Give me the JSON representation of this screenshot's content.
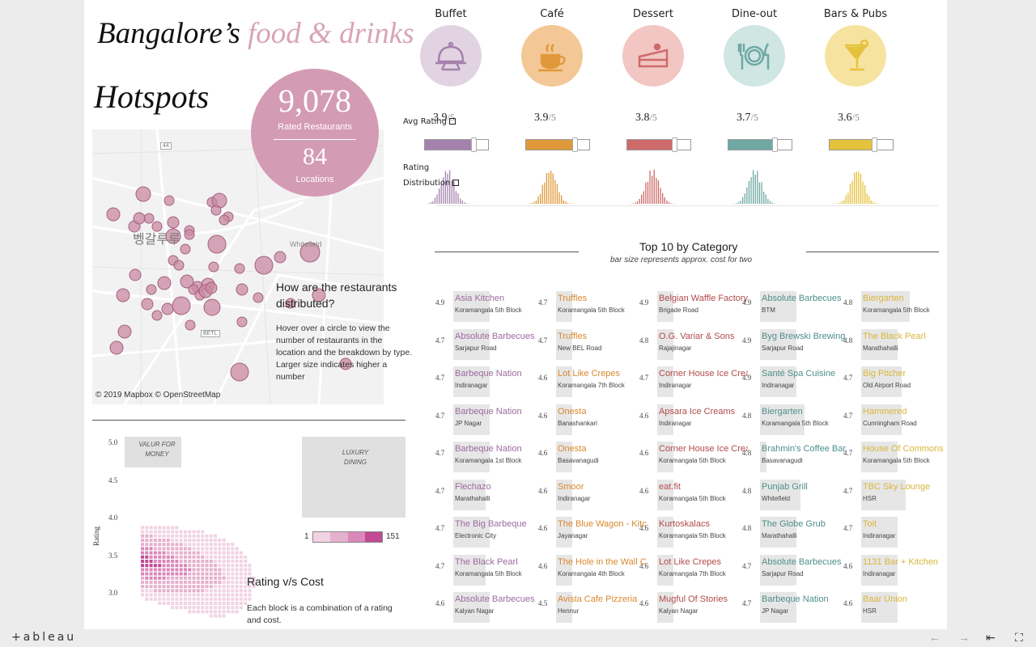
{
  "title": {
    "part1": "Bangalore’s",
    "part2": "food & drinks",
    "part3": "Hotspots"
  },
  "summary": {
    "restaurants": "9,078",
    "restaurants_label": "Rated Restaurants",
    "locations": "84",
    "locations_label": "Locations"
  },
  "map": {
    "question": "How are the restaurants distributed?",
    "description": "Hover over a circle to view the number of restaurants in the location and the breakdown by type. Larger size indicates higher a number",
    "credit": "© 2019 Mapbox  © OpenStreetMap",
    "labels": {
      "city": "벵갈루루",
      "whitefield": "Whitefield",
      "road44": "44",
      "betl": "BETL"
    }
  },
  "categories": [
    {
      "name": "Buffet",
      "avg": "3.9",
      "den": "/5",
      "rating": 3.9,
      "color": "#a582ad",
      "bg": "#e2d3e3",
      "icon": "cloche-icon"
    },
    {
      "name": "Café",
      "avg": "3.9",
      "den": "/5",
      "rating": 3.9,
      "color": "#e0993a",
      "bg": "#f3c896",
      "icon": "coffee-cup-icon"
    },
    {
      "name": "Dessert",
      "avg": "3.8",
      "den": "/5",
      "rating": 3.8,
      "color": "#cf6a6a",
      "bg": "#f2c6c2",
      "icon": "cake-slice-icon"
    },
    {
      "name": "Dine-out",
      "avg": "3.7",
      "den": "/5",
      "rating": 3.7,
      "color": "#6fa9a4",
      "bg": "#cfe6e3",
      "icon": "plate-cutlery-icon"
    },
    {
      "name": "Bars & Pubs",
      "avg": "3.6",
      "den": "/5",
      "rating": 3.6,
      "color": "#e5c23b",
      "bg": "#f7e3a0",
      "icon": "cocktail-icon"
    }
  ],
  "labels": {
    "avg_rating": "Avg Rating",
    "rating": "Rating",
    "distribution": "Distribution"
  },
  "top10": {
    "title": "Top 10 by Category",
    "subtitle": "bar size represents approx. cost for two",
    "columns": [
      {
        "color": "#9b6a9e",
        "rows": [
          {
            "r": "4.9",
            "n": "Asia Kitchen",
            "l": "Koramangala 5th Block",
            "w": 0.45
          },
          {
            "r": "4.7",
            "n": "Absolute Barbecues",
            "l": "Sarjapur Road",
            "w": 0.45
          },
          {
            "r": "4.7",
            "n": "Barbeque Nation",
            "l": "Indiranagar",
            "w": 0.45
          },
          {
            "r": "4.7",
            "n": "Barbeque Nation",
            "l": "JP Nagar",
            "w": 0.45
          },
          {
            "r": "4.7",
            "n": "Barbeque Nation",
            "l": "Koramangala 1st Block",
            "w": 0.45
          },
          {
            "r": "4.7",
            "n": "Flechazo",
            "l": "Marathahalli",
            "w": 0.4
          },
          {
            "r": "4.7",
            "n": "The Big Barbeque",
            "l": "Electronic City",
            "w": 0.45
          },
          {
            "r": "4.7",
            "n": "The Black Pearl",
            "l": "Koramangala 5th Block",
            "w": 0.4
          },
          {
            "r": "4.6",
            "n": "Absolute Barbecues",
            "l": "Kalyan Nagar",
            "w": 0.45
          }
        ]
      },
      {
        "color": "#d9892e",
        "rows": [
          {
            "r": "4.7",
            "n": "Truffles",
            "l": "Koramangala 5th Block",
            "w": 0.2
          },
          {
            "r": "4.7",
            "n": "Truffles",
            "l": "New BEL Road",
            "w": 0.2
          },
          {
            "r": "4.6",
            "n": "Lot Like Crepes",
            "l": "Koramangala 7th Block",
            "w": 0.2
          },
          {
            "r": "4.6",
            "n": "Onesta",
            "l": "Banashankari",
            "w": 0.2
          },
          {
            "r": "4.6",
            "n": "Onesta",
            "l": "Basavanagudi",
            "w": 0.2
          },
          {
            "r": "4.6",
            "n": "Smoor",
            "l": "Indiranagar",
            "w": 0.2
          },
          {
            "r": "4.6",
            "n": "The Blue Wagon - Kitchen",
            "l": "Jayanagar",
            "w": 0.2
          },
          {
            "r": "4.6",
            "n": "The Hole in the Wall Cafe",
            "l": "Koramangala 4th Block",
            "w": 0.2
          },
          {
            "r": "4.5",
            "n": "Avista Cafe Pizzeria",
            "l": "Hennur",
            "w": 0.2
          }
        ]
      },
      {
        "color": "#b24a4a",
        "rows": [
          {
            "r": "4.9",
            "n": "Belgian Waffle Factory",
            "l": "Brigade Road",
            "w": 0.2
          },
          {
            "r": "4.8",
            "n": "O.G. Variar & Sons",
            "l": "Rajajinagar",
            "w": 0.2
          },
          {
            "r": "4.7",
            "n": "Corner House Ice Cream",
            "l": "Indiranagar",
            "w": 0.2
          },
          {
            "r": "4.6",
            "n": "Apsara Ice Creams",
            "l": "Indiranagar",
            "w": 0.2
          },
          {
            "r": "4.6",
            "n": "Corner House Ice Cream",
            "l": "Koramangala 5th Block",
            "w": 0.2
          },
          {
            "r": "4.6",
            "n": "eat.fit",
            "l": "Koramangala 5th Block",
            "w": 0.2
          },
          {
            "r": "4.6",
            "n": "Kurtoskalacs",
            "l": "Koramangala 5th Block",
            "w": 0.2
          },
          {
            "r": "4.6",
            "n": "Lot Like Crepes",
            "l": "Koramangala 7th Block",
            "w": 0.2
          },
          {
            "r": "4.6",
            "n": "Mugful Of Stories",
            "l": "Kalyan Nagar",
            "w": 0.2
          }
        ]
      },
      {
        "color": "#4e8f8a",
        "rows": [
          {
            "r": "4.9",
            "n": "Absolute Barbecues",
            "l": "BTM",
            "w": 0.45
          },
          {
            "r": "4.9",
            "n": "Byg Brewski Brewing",
            "l": "Sarjapur Road",
            "w": 0.45
          },
          {
            "r": "4.9",
            "n": "Santé Spa Cuisine",
            "l": "Indiranagar",
            "w": 0.45
          },
          {
            "r": "4.8",
            "n": "Biergarten",
            "l": "Koramangala 5th Block",
            "w": 0.55
          },
          {
            "r": "4.8",
            "n": "Brahmin's Coffee Bar",
            "l": "Basavanagudi",
            "w": 0.08
          },
          {
            "r": "4.8",
            "n": "Punjab Grill",
            "l": "Whitefield",
            "w": 0.5
          },
          {
            "r": "4.8",
            "n": "The Globe Grub",
            "l": "Marathahalli",
            "w": 0.45
          },
          {
            "r": "4.7",
            "n": "Absolute Barbecues",
            "l": "Sarjapur Road",
            "w": 0.45
          },
          {
            "r": "4.7",
            "n": "Barbeque Nation",
            "l": "JP Nagar",
            "w": 0.45
          }
        ]
      },
      {
        "color": "#d9b63a",
        "rows": [
          {
            "r": "4.8",
            "n": "Biergarten",
            "l": "Koramangala 5th Block",
            "w": 0.6
          },
          {
            "r": "4.8",
            "n": "The Black Pearl",
            "l": "Marathahalli",
            "w": 0.45
          },
          {
            "r": "4.7",
            "n": "Big Pitcher",
            "l": "Old Airport Road",
            "w": 0.5
          },
          {
            "r": "4.7",
            "n": "Hammered",
            "l": "Cunningham Road",
            "w": 0.5
          },
          {
            "r": "4.7",
            "n": "House Of Commons",
            "l": "Koramangala 5th Block",
            "w": 0.45
          },
          {
            "r": "4.7",
            "n": "TBC Sky Lounge",
            "l": "HSR",
            "w": 0.55
          },
          {
            "r": "4.7",
            "n": "Toit",
            "l": "Indiranagar",
            "w": 0.45
          },
          {
            "r": "4.6",
            "n": "1131 Bar + Kitchen",
            "l": "Indiranagar",
            "w": 0.45
          },
          {
            "r": "4.6",
            "n": "Baar Union",
            "l": "HSR",
            "w": 0.45
          }
        ]
      }
    ]
  },
  "rating_cost": {
    "title": "Rating v/s Cost",
    "description": "Each block is a combination of a rating and cost.",
    "yaxis": "Rating",
    "yticks": [
      "5.0",
      "4.5",
      "4.0",
      "3.5",
      "3.0"
    ],
    "value_for_money": "VALUR FOR MONEY",
    "luxury": "LUXURY DINING",
    "legend_min": "1",
    "legend_max": "151"
  },
  "footer": {
    "brand": "+ableau",
    "icons": [
      "back-icon",
      "forward-icon",
      "reset-icon",
      "fullscreen-icon"
    ]
  }
}
